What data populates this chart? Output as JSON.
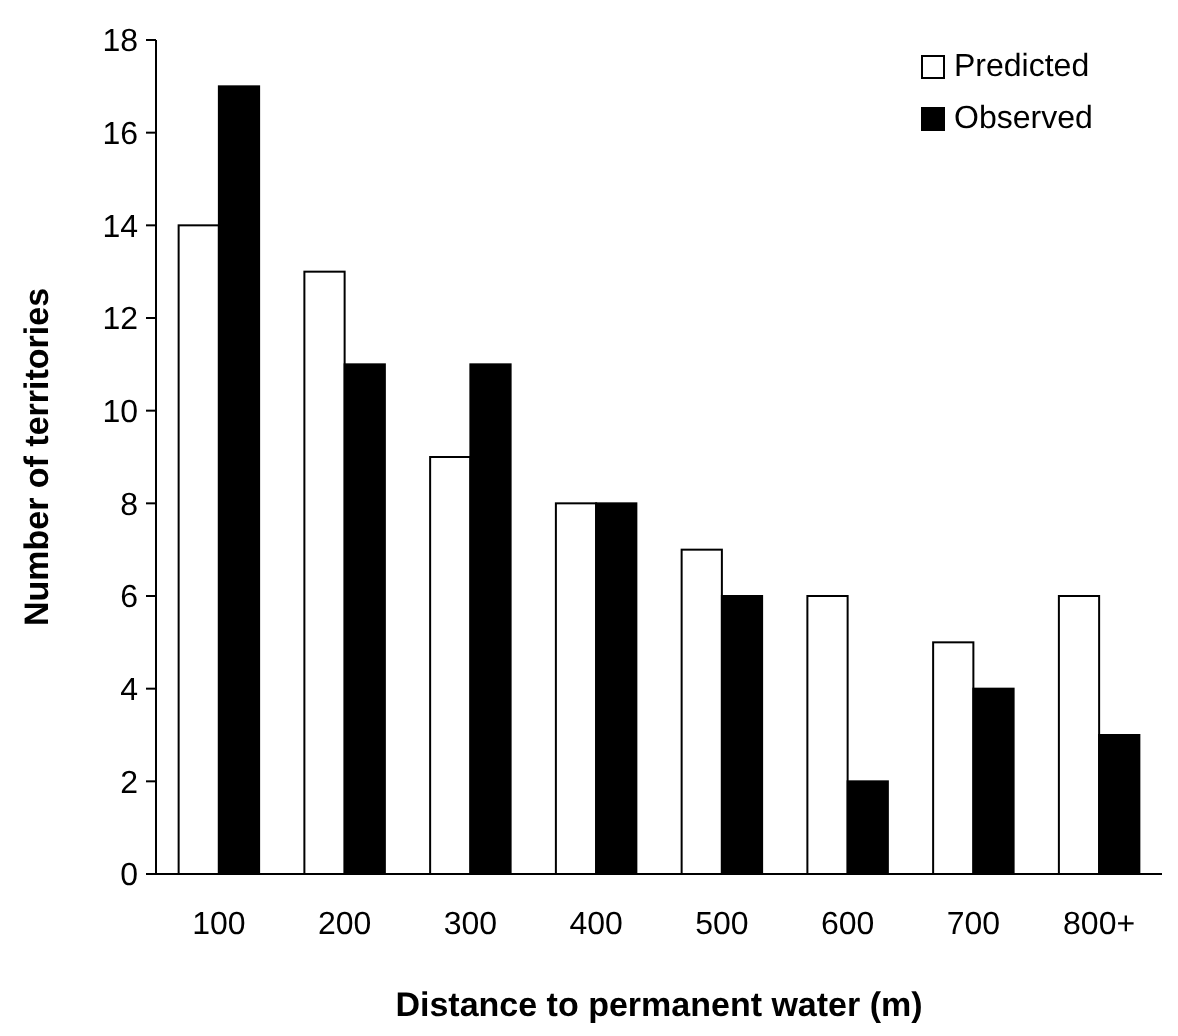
{
  "chart_data": {
    "type": "bar",
    "xlabel": "Distance to permanent water (m)",
    "ylabel": "Number of territories",
    "categories": [
      "100",
      "200",
      "300",
      "400",
      "500",
      "600",
      "700",
      "800+"
    ],
    "series": [
      {
        "name": "Predicted",
        "color": "#ffffff",
        "values": [
          14,
          13,
          9,
          8,
          7,
          6,
          5,
          6
        ]
      },
      {
        "name": "Observed",
        "color": "#000000",
        "values": [
          17,
          11,
          11,
          8,
          6,
          2,
          4,
          3
        ]
      }
    ],
    "ylim": [
      0,
      18
    ],
    "yticks": [
      0,
      2,
      4,
      6,
      8,
      10,
      12,
      14,
      16,
      18
    ],
    "grid": false,
    "legend": "top right"
  }
}
